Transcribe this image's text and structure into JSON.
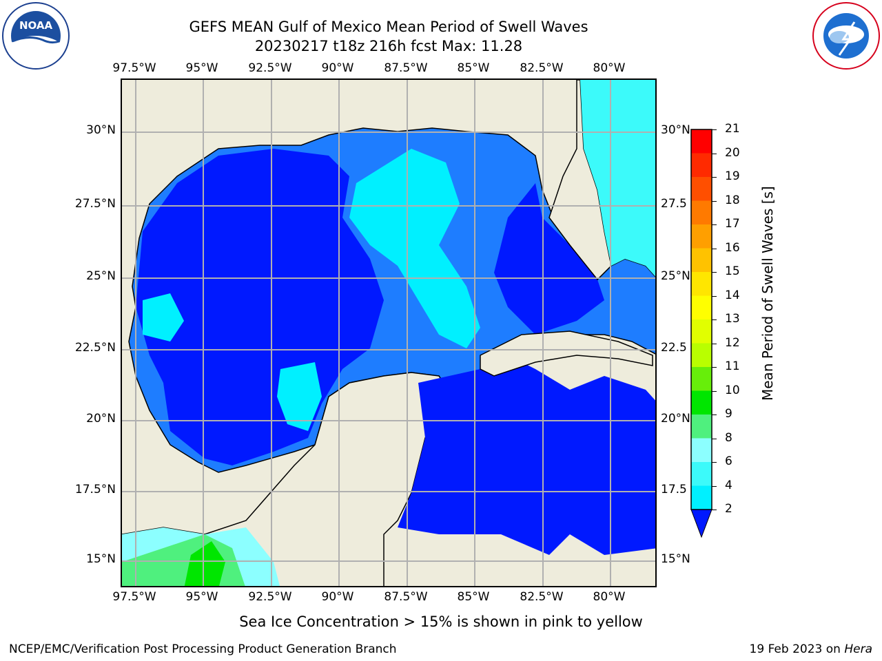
{
  "title_line1": "GEFS MEAN Gulf of Mexico Mean Period of Swell Waves",
  "title_line2": "20230217 t18z 216h fcst   Max: 11.28",
  "logos": {
    "left": {
      "text": "NOAA",
      "ring_text": "NATIONAL OCEANIC AND ATMOSPHERIC ADMINISTRATION · U.S. DEPARTMENT OF COMMERCE",
      "icon": "noaa-logo-icon"
    },
    "right": {
      "ring_text": "NATIONAL WEATHER SERVICE",
      "icon": "nws-logo-icon"
    }
  },
  "x_ticks": [
    "97.5°W",
    "95°W",
    "92.5°W",
    "90°W",
    "87.5°W",
    "85°W",
    "82.5°W",
    "80°W"
  ],
  "y_ticks_left": [
    "30°N",
    "27.5°N",
    "25°N",
    "22.5°N",
    "20°N",
    "17.5°N",
    "15°N"
  ],
  "y_ticks_right": [
    "30°N",
    "27.5",
    "25°N",
    "22.5",
    "20°N",
    "17.5",
    "15°N"
  ],
  "colorbar": {
    "title": "Mean Period of Swell Waves [s]",
    "labels": [
      "21",
      "20",
      "19",
      "18",
      "17",
      "16",
      "15",
      "14",
      "13",
      "12",
      "11",
      "10",
      "9",
      "8",
      "6",
      "4",
      "2"
    ],
    "colors": [
      "#ff0000",
      "#ff2a00",
      "#ff4f00",
      "#ff7a00",
      "#ff9f00",
      "#ffc200",
      "#ffe600",
      "#ffff00",
      "#e1ff00",
      "#b9ff00",
      "#67ee0a",
      "#00e600",
      "#4ff07e",
      "#8cffff",
      "#3cfafa",
      "#00f0ff",
      "#0066ff"
    ],
    "under_color": "#0019ff"
  },
  "map": {
    "land_color": "#eeecdc",
    "grid_color": "#b0b0b0",
    "ocean_colors": {
      "deep_blue": "#0019ff",
      "mid_blue": "#1e7dff",
      "cyan": "#00f0ff",
      "light_cyan": "#8cffff",
      "green": "#4ff07e",
      "bright_green": "#00e600"
    }
  },
  "footer_note": "Sea Ice Concentration > 15% is shown in pink to yellow",
  "credit": "NCEP/EMC/Verification Post Processing Product Generation Branch",
  "date_prefix": "19 Feb 2023 on ",
  "date_machine": "Hera"
}
